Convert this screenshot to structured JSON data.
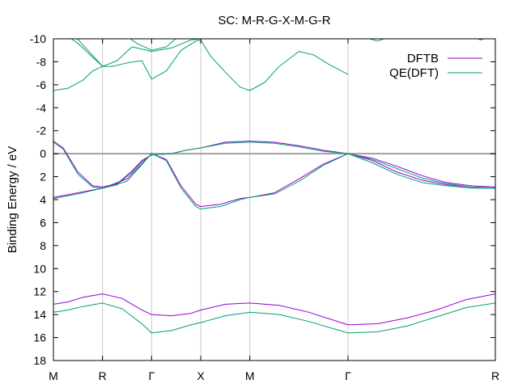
{
  "chart_data": {
    "type": "line",
    "title": "SC: M-R-G-X-M-G-R",
    "xlabel": "",
    "ylabel": "Binding Energy / eV",
    "ylim": [
      18,
      -10
    ],
    "yticks": [
      -10,
      -8,
      -6,
      -4,
      -2,
      0,
      2,
      4,
      6,
      8,
      10,
      12,
      14,
      16,
      18
    ],
    "grid": "vertical lines at high-symmetry points",
    "legend_position": "top-right",
    "x_ticks": [
      {
        "label": "M",
        "x": 0.0
      },
      {
        "label": "R",
        "x": 1.0
      },
      {
        "label": "Γ",
        "x": 2.0
      },
      {
        "label": "X",
        "x": 3.0
      },
      {
        "label": "M",
        "x": 4.0
      },
      {
        "label": "Γ",
        "x": 6.0
      },
      {
        "label": "R",
        "x": 9.0
      }
    ],
    "xlim": [
      0,
      9
    ],
    "fermi_level": 0,
    "colors": {
      "DFTB": "#9400d3",
      "QE(DFT)": "#009e73",
      "fermi": "#a0a0a0",
      "grid": "#c8c8c8"
    },
    "series": [
      {
        "name": "DFTB",
        "color": "#9400d3",
        "bands": [
          {
            "x": [
              0,
              0.2,
              0.5,
              0.8,
              1.0,
              1.3,
              1.6,
              1.8,
              2.0,
              2.4,
              2.7,
              3.0,
              3.5,
              4.0
            ],
            "y": [
              -1.1,
              -0.5,
              1.6,
              2.8,
              2.9,
              2.6,
              1.5,
              0.6,
              0.1,
              0.0,
              -0.3,
              -0.5,
              -1.0,
              -1.1
            ]
          },
          {
            "x": [
              4.0,
              4.5,
              5.0,
              5.5,
              6.0,
              6.5,
              7.0,
              7.5,
              8.0,
              8.5,
              9.0
            ],
            "y": [
              -1.1,
              -1.0,
              -0.7,
              -0.3,
              0.0,
              0.4,
              1.1,
              1.9,
              2.5,
              2.8,
              2.9
            ]
          },
          {
            "x": [
              0,
              0.5,
              1.0,
              1.5,
              2.0,
              2.3,
              2.6,
              2.9,
              3.0,
              3.4,
              3.8,
              4.0
            ],
            "y": [
              3.8,
              3.4,
              3.0,
              2.2,
              0.0,
              0.5,
              2.8,
              4.4,
              4.6,
              4.4,
              3.9,
              3.8
            ]
          },
          {
            "x": [
              4.0,
              4.5,
              5.0,
              5.5,
              6.0,
              6.5,
              7.0,
              7.5,
              8.0,
              8.5,
              9.0
            ],
            "y": [
              3.8,
              3.4,
              2.2,
              0.9,
              0.0,
              0.6,
              1.6,
              2.3,
              2.7,
              2.9,
              3.0
            ]
          },
          {
            "x": [
              0,
              0.3,
              0.6,
              1.0,
              1.4,
              1.8,
              2.0,
              2.4,
              2.8,
              3.0,
              3.5,
              4.0,
              4.6,
              5.2,
              6.0,
              6.6,
              7.2,
              7.8,
              8.4,
              9.0
            ],
            "y": [
              13.1,
              12.9,
              12.5,
              12.2,
              12.6,
              13.6,
              14.0,
              14.1,
              13.9,
              13.6,
              13.1,
              13.0,
              13.2,
              13.8,
              14.9,
              14.8,
              14.3,
              13.6,
              12.7,
              12.2
            ]
          }
        ]
      },
      {
        "name": "QE(DFT)",
        "color": "#009e73",
        "bands": [
          {
            "x": [
              0,
              0.2,
              0.5,
              0.8,
              1.0,
              1.3,
              1.6,
              1.8,
              2.0,
              2.4,
              2.7,
              3.0,
              3.5,
              4.0
            ],
            "y": [
              -1.0,
              -0.4,
              1.8,
              2.9,
              3.0,
              2.7,
              1.6,
              0.7,
              0.1,
              0.0,
              -0.3,
              -0.5,
              -0.9,
              -1.0
            ]
          },
          {
            "x": [
              4.0,
              4.5,
              5.0,
              5.5,
              6.0,
              6.5,
              7.0,
              7.5,
              8.0,
              8.5,
              9.0
            ],
            "y": [
              -1.0,
              -0.9,
              -0.6,
              -0.2,
              0.0,
              0.5,
              1.3,
              2.1,
              2.6,
              2.9,
              3.0
            ]
          },
          {
            "x": [
              0,
              0.5,
              1.0,
              1.5,
              2.0,
              2.3,
              2.6,
              2.9,
              3.0,
              3.4,
              3.8,
              4.0
            ],
            "y": [
              3.9,
              3.5,
              3.0,
              2.4,
              0.0,
              0.6,
              3.0,
              4.6,
              4.8,
              4.6,
              4.0,
              3.8
            ]
          },
          {
            "x": [
              4.0,
              4.5,
              5.0,
              5.5,
              6.0,
              6.5,
              7.0,
              7.5,
              8.0,
              8.5,
              9.0
            ],
            "y": [
              3.8,
              3.5,
              2.4,
              1.0,
              0.0,
              0.8,
              1.8,
              2.5,
              2.8,
              3.0,
              3.0
            ]
          },
          {
            "x": [
              0,
              0.3,
              0.6,
              1.0,
              1.4,
              1.8,
              2.0,
              2.4,
              2.8,
              3.0,
              3.5,
              4.0,
              4.6,
              5.2,
              6.0,
              6.6,
              7.2,
              7.8,
              8.4,
              9.0
            ],
            "y": [
              13.8,
              13.6,
              13.3,
              13.0,
              13.5,
              14.8,
              15.6,
              15.4,
              14.9,
              14.7,
              14.1,
              13.8,
              14.0,
              14.6,
              15.6,
              15.5,
              15.0,
              14.2,
              13.4,
              13.0
            ]
          },
          {
            "x": [
              0,
              0.3,
              0.6,
              0.8,
              1.0,
              1.2,
              1.5,
              1.8,
              2.0,
              2.3,
              2.6,
              2.9,
              3.0,
              3.2,
              3.5,
              3.8,
              4.0
            ],
            "y": [
              -5.5,
              -5.7,
              -6.4,
              -7.2,
              -7.6,
              -7.6,
              -7.9,
              -8.1,
              -6.5,
              -7.2,
              -9.0,
              -9.8,
              -9.9,
              -8.5,
              -7.1,
              -5.8,
              -5.5
            ]
          },
          {
            "x": [
              4.0,
              4.3,
              4.6,
              5.0,
              5.3,
              5.6,
              6.0
            ],
            "y": [
              -5.5,
              -6.2,
              -7.6,
              -8.9,
              -8.6,
              -7.8,
              -6.9
            ]
          },
          {
            "x": [
              0.4,
              0.7,
              1.0,
              1.3,
              1.6,
              2.0,
              2.4,
              2.8,
              3.0,
              3.2
            ],
            "y": [
              -10.4,
              -9.0,
              -7.6,
              -8.1,
              -9.3,
              -8.9,
              -9.2,
              -9.9,
              -10.0,
              -10.5
            ]
          },
          {
            "x": [
              0.2,
              0.5,
              0.8,
              1.0
            ],
            "y": [
              -10.5,
              -9.6,
              -8.4,
              -7.6
            ]
          },
          {
            "x": [
              1.4,
              1.7,
              2.0,
              2.3,
              2.6
            ],
            "y": [
              -10.5,
              -9.6,
              -9.0,
              -9.3,
              -10.4
            ]
          },
          {
            "x": [
              6.2,
              6.6,
              7.0
            ],
            "y": [
              -10.3,
              -9.8,
              -10.4
            ]
          },
          {
            "x": [
              8.4,
              8.7,
              9.0
            ],
            "y": [
              -10.4,
              -9.9,
              -10.3
            ]
          }
        ]
      }
    ]
  }
}
